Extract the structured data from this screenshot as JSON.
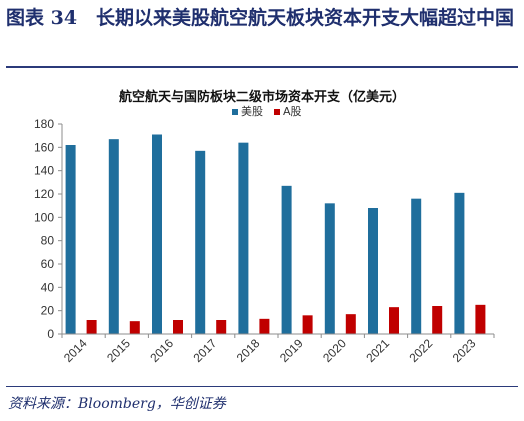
{
  "figure": {
    "title": "图表 34　长期以来美股航空航天板块资本开支大幅超过中国",
    "source": "资料来源：Bloomberg，华创证券"
  },
  "chart_data": {
    "type": "bar",
    "title": "航空航天与国防板块二级市场资本开支（亿美元）",
    "categories": [
      "2014",
      "2015",
      "2016",
      "2017",
      "2018",
      "2019",
      "2020",
      "2021",
      "2022",
      "2023"
    ],
    "series": [
      {
        "name": "美股",
        "color": "#1f6e9c",
        "values": [
          162,
          167,
          171,
          157,
          164,
          127,
          112,
          108,
          116,
          121
        ]
      },
      {
        "name": "A股",
        "color": "#c00000",
        "values": [
          12,
          11,
          12,
          12,
          13,
          16,
          17,
          23,
          24,
          25
        ]
      }
    ],
    "ylim": [
      0,
      180
    ],
    "yticks": [
      0,
      20,
      40,
      60,
      80,
      100,
      120,
      140,
      160,
      180
    ],
    "legend_position": "top-center",
    "grid": false
  }
}
